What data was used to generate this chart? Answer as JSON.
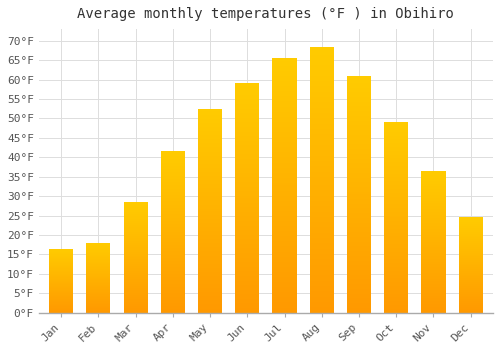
{
  "title": "Average monthly temperatures (°F ) in Obihiro",
  "months": [
    "Jan",
    "Feb",
    "Mar",
    "Apr",
    "May",
    "Jun",
    "Jul",
    "Aug",
    "Sep",
    "Oct",
    "Nov",
    "Dec"
  ],
  "values": [
    16.5,
    18.0,
    28.5,
    41.5,
    52.5,
    59.0,
    65.5,
    68.5,
    61.0,
    49.0,
    36.5,
    24.5
  ],
  "bar_color_top": "#FFB300",
  "bar_color_bottom": "#FFA500",
  "background_color": "#FFFFFF",
  "grid_color": "#DDDDDD",
  "ylim": [
    0,
    73
  ],
  "yticks": [
    0,
    5,
    10,
    15,
    20,
    25,
    30,
    35,
    40,
    45,
    50,
    55,
    60,
    65,
    70
  ],
  "title_fontsize": 10,
  "tick_fontsize": 8,
  "font_family": "monospace"
}
